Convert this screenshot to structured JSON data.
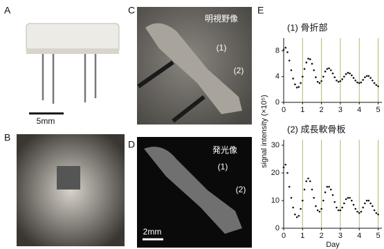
{
  "panels": {
    "a": {
      "label": "A",
      "scale": "5mm"
    },
    "b": {
      "label": "B"
    },
    "c": {
      "label": "C",
      "caption": "明視野像",
      "mark1": "(1)",
      "mark2": "(2)"
    },
    "d": {
      "label": "D",
      "caption": "発光像",
      "mark1": "(1)",
      "mark2": "(2)",
      "scale": "2mm"
    },
    "e": {
      "label": "E"
    }
  },
  "chart_data": [
    {
      "type": "scatter",
      "title": "(1) 骨折部",
      "y_label": "signal intensity (×10⁵)",
      "color": "#111111",
      "x": [
        0,
        0.1,
        0.2,
        0.3,
        0.4,
        0.5,
        0.6,
        0.7,
        0.8,
        0.9,
        1,
        1.1,
        1.2,
        1.3,
        1.4,
        1.5,
        1.6,
        1.7,
        1.8,
        1.9,
        2,
        2.1,
        2.2,
        2.3,
        2.4,
        2.5,
        2.6,
        2.7,
        2.8,
        2.9,
        3,
        3.1,
        3.2,
        3.3,
        3.4,
        3.5,
        3.6,
        3.7,
        3.8,
        3.9,
        4,
        4.1,
        4.2,
        4.3,
        4.4,
        4.5,
        4.6,
        4.7,
        4.8,
        4.9,
        5
      ],
      "values": [
        8.2,
        8.5,
        7.8,
        6.5,
        5.0,
        3.7,
        2.8,
        2.3,
        2.4,
        3.0,
        4.0,
        5.2,
        6.2,
        6.8,
        6.7,
        6.0,
        5.0,
        3.9,
        3.2,
        3.0,
        3.3,
        4.0,
        4.8,
        5.2,
        5.3,
        5.0,
        4.5,
        3.9,
        3.4,
        3.2,
        3.3,
        3.6,
        4.0,
        4.4,
        4.6,
        4.5,
        4.2,
        3.8,
        3.4,
        3.1,
        3.0,
        3.1,
        3.5,
        3.9,
        4.1,
        4.1,
        3.8,
        3.4,
        3.0,
        2.7,
        2.5
      ],
      "xlim": [
        0,
        5.2
      ],
      "xticks": [
        0,
        1,
        2,
        3,
        4,
        5
      ],
      "ylim": [
        0,
        10
      ],
      "yticks": [
        0,
        4,
        8
      ],
      "grid_color": "#b5b36a"
    },
    {
      "type": "scatter",
      "title": "(2) 成長軟骨板",
      "x_label": "Day",
      "color": "#111111",
      "x": [
        0,
        0.1,
        0.2,
        0.3,
        0.4,
        0.5,
        0.6,
        0.7,
        0.8,
        0.9,
        1,
        1.1,
        1.2,
        1.3,
        1.4,
        1.5,
        1.6,
        1.7,
        1.8,
        1.9,
        2,
        2.1,
        2.2,
        2.3,
        2.4,
        2.5,
        2.6,
        2.7,
        2.8,
        2.9,
        3,
        3.1,
        3.2,
        3.3,
        3.4,
        3.5,
        3.6,
        3.7,
        3.8,
        3.9,
        4,
        4.1,
        4.2,
        4.3,
        4.4,
        4.5,
        4.6,
        4.7,
        4.8,
        4.9,
        5
      ],
      "values": [
        22,
        23,
        20,
        15,
        11,
        7.5,
        5,
        4,
        4.5,
        7,
        10,
        14,
        17,
        18,
        17,
        14,
        11,
        8,
        6.5,
        6,
        7,
        10,
        13,
        15,
        15,
        14,
        12,
        9.5,
        7.5,
        6.5,
        6.5,
        7.5,
        9,
        10.5,
        11,
        11,
        10,
        8.5,
        7,
        6,
        5.5,
        6,
        7.5,
        9,
        10,
        10,
        9,
        8,
        6.5,
        5.5,
        5
      ],
      "xlim": [
        0,
        5.2
      ],
      "xticks": [
        0,
        1,
        2,
        3,
        4,
        5
      ],
      "ylim": [
        0,
        32
      ],
      "yticks": [
        0,
        10,
        20,
        30
      ],
      "grid_color": "#b5b36a"
    }
  ]
}
